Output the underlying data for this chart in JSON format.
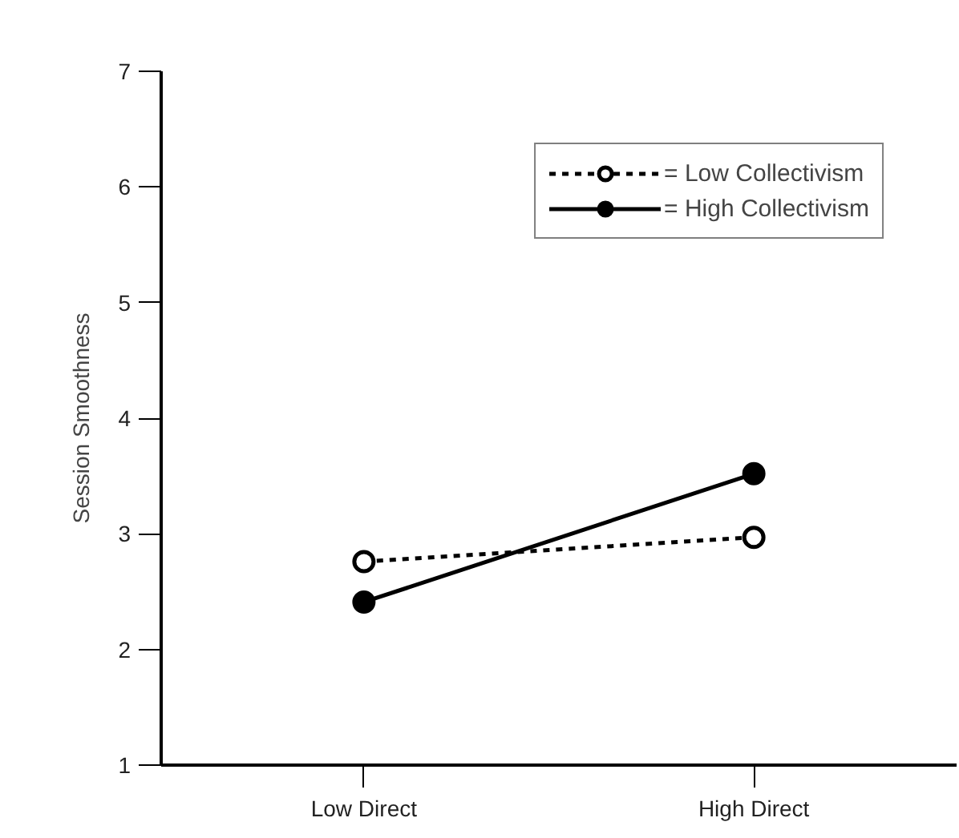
{
  "chart_data": {
    "type": "line",
    "ylabel": "Session Smoothness",
    "categories": [
      "Low Direct",
      "High Direct"
    ],
    "series": [
      {
        "name": "= Low Collectivism",
        "color": "#000000",
        "values": [
          2.76,
          2.97
        ],
        "line_style": "dashed"
      },
      {
        "name": "= High Collectivism",
        "color": "#000000",
        "values": [
          2.41,
          3.52
        ],
        "line_style": "solid"
      }
    ],
    "ylim": [
      1,
      7
    ],
    "yticks": [
      1,
      2,
      3,
      4,
      5,
      6,
      7
    ],
    "grid": false,
    "legend": "top right",
    "marker": "circle"
  }
}
